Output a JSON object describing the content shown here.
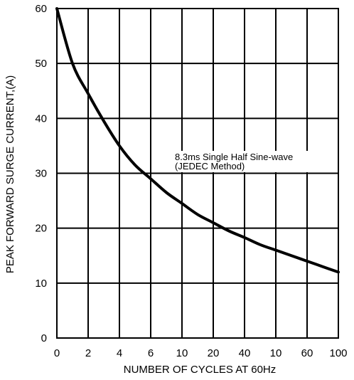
{
  "chart_data": {
    "type": "line",
    "xlabel": "NUMBER OF CYCLES AT 60Hz",
    "ylabel": "PEAK FORWARD SURGE CURRENT,(A)",
    "x_tick_labels": [
      "0",
      "2",
      "4",
      "6",
      "10",
      "20",
      "40",
      "10",
      "60",
      "100"
    ],
    "y_ticks": [
      0,
      10,
      20,
      30,
      40,
      50,
      60
    ],
    "ylim": [
      0,
      60
    ],
    "grid": true,
    "annotation": [
      "8.3ms Single Half Sine-wave",
      "(JEDEC Method)"
    ],
    "series": [
      {
        "x_positions": [
          0,
          0.5,
          1,
          1.5,
          2,
          2.5,
          3,
          3.5,
          4,
          4.5,
          5,
          5.5,
          6,
          6.5,
          7,
          7.5,
          8,
          8.5,
          9
        ],
        "values": [
          60,
          50,
          44.5,
          39.5,
          35,
          31.5,
          29,
          26.5,
          24.5,
          22.5,
          21,
          19.5,
          18.3,
          17,
          16,
          15,
          14,
          13,
          12
        ]
      }
    ],
    "colors": {
      "line": "#000000",
      "grid": "#000000",
      "background": "#ffffff"
    }
  }
}
